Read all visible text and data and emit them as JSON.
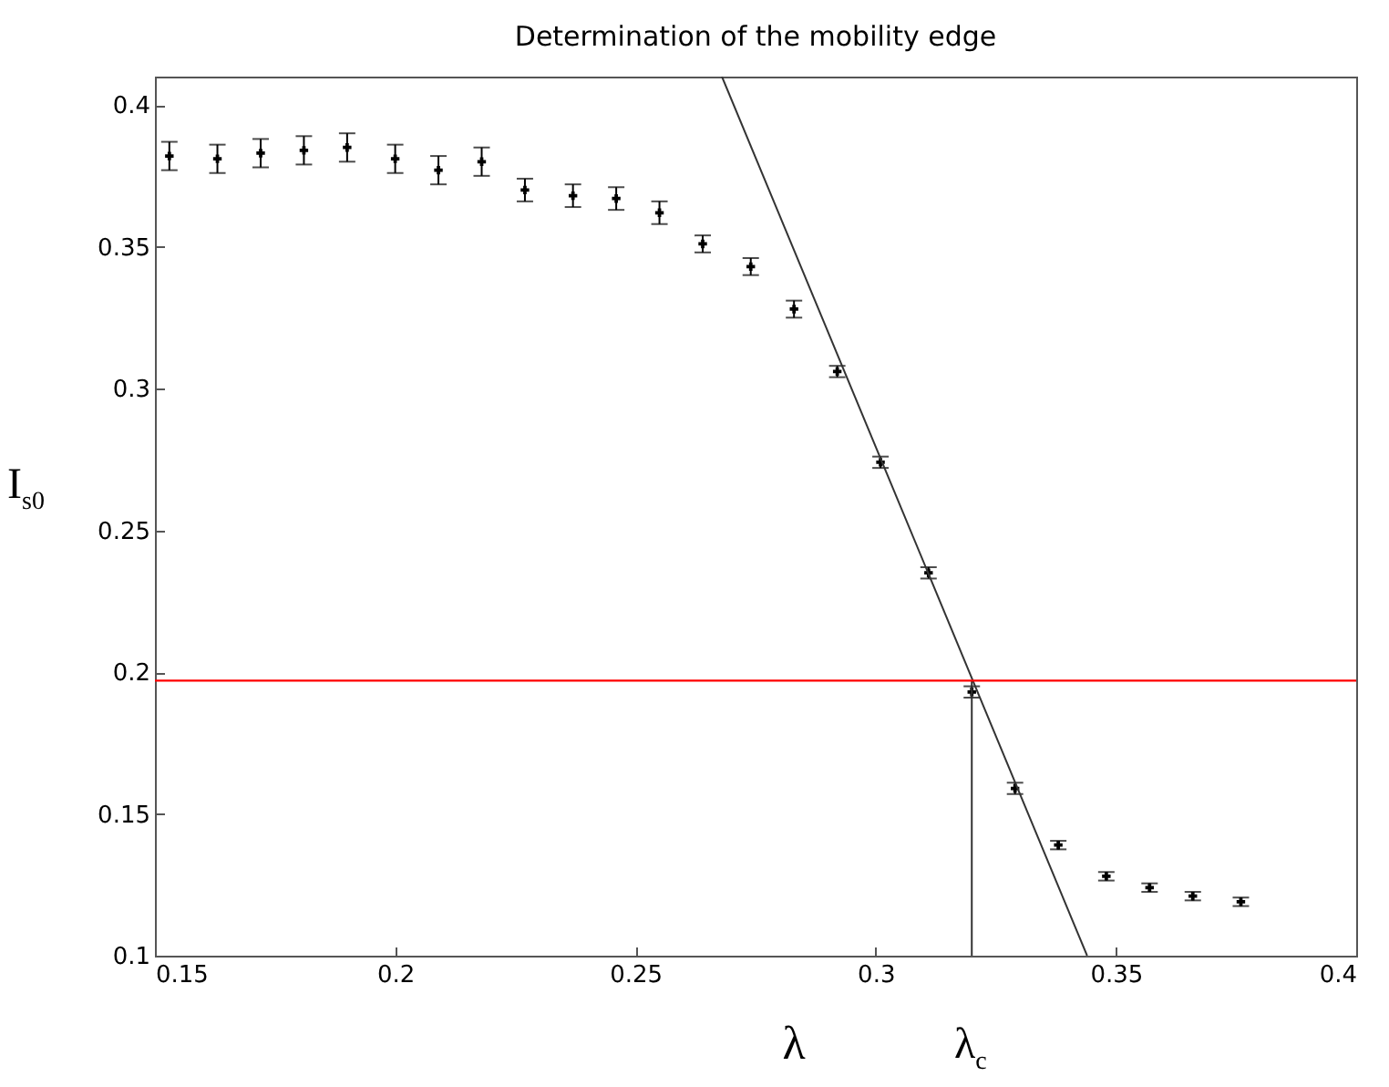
{
  "chart_data": {
    "type": "scatter",
    "title": "Determination of the mobility edge",
    "xlabel": "λ",
    "ylabel": "I$_{s0}$",
    "annotations": [
      "λ$_{c}$"
    ],
    "xlim": [
      0.15,
      0.4
    ],
    "xticks": [
      0.15,
      0.2,
      0.25,
      0.3,
      0.35,
      0.4
    ],
    "ylim": [
      0.1,
      0.41
    ],
    "yticks": [
      0.1,
      0.15,
      0.2,
      0.25,
      0.3,
      0.35,
      0.4
    ],
    "grid": false,
    "ref_lines": [
      {
        "axis": "y",
        "value": 0.197,
        "color": "#ff0000"
      }
    ],
    "series": [
      {
        "type": "scatter",
        "color": "#000000",
        "marker": "cross",
        "x": [
          0.153,
          0.163,
          0.172,
          0.181,
          0.19,
          0.2,
          0.209,
          0.218,
          0.227,
          0.237,
          0.246,
          0.255,
          0.264,
          0.274,
          0.283,
          0.292,
          0.301,
          0.311,
          0.32,
          0.329,
          0.338,
          0.348,
          0.357,
          0.366,
          0.376
        ],
        "values": [
          0.382,
          0.381,
          0.383,
          0.384,
          0.385,
          0.381,
          0.377,
          0.38,
          0.37,
          0.368,
          0.367,
          0.362,
          0.351,
          0.343,
          0.328,
          0.306,
          0.274,
          0.235,
          0.193,
          0.159,
          0.139,
          0.128,
          0.124,
          0.121,
          0.119
        ],
        "errors": [
          0.005,
          0.005,
          0.005,
          0.005,
          0.005,
          0.005,
          0.005,
          0.005,
          0.004,
          0.004,
          0.004,
          0.004,
          0.003,
          0.003,
          0.003,
          0.002,
          0.002,
          0.002,
          0.002,
          0.002,
          0.0015,
          0.0015,
          0.0015,
          0.0015,
          0.0015
        ]
      },
      {
        "type": "line",
        "color": "#333333",
        "x": [
          0.268,
          0.344
        ],
        "values": [
          0.41,
          0.1
        ],
        "marker": "none"
      },
      {
        "type": "line",
        "color": "#333333",
        "x": [
          0.32,
          0.32
        ],
        "values": [
          0.1,
          0.197
        ],
        "marker": "none"
      }
    ]
  }
}
